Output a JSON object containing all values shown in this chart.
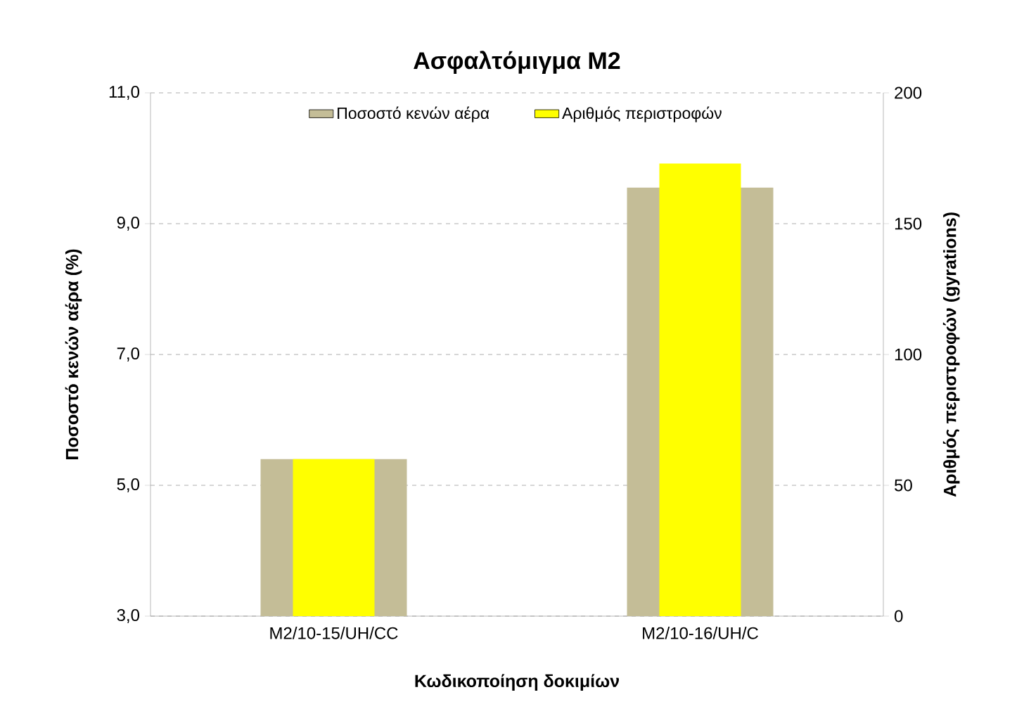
{
  "chart_data": {
    "type": "bar",
    "title": "Ασφαλτόμιγμα M2",
    "xlabel": "Κωδικοποίηση δοκιμίων",
    "ylabel": "Ποσοστό κενών αέρα (%)",
    "y2label": "Αριθμός περιστροφών (gyrations)",
    "categories": [
      "M2/10-15/UH/CC",
      "M2/10-16/UH/C"
    ],
    "series": [
      {
        "name": "Ποσοστό κενών αέρα",
        "color": "#c4bd97",
        "values": [
          5.4,
          9.55
        ]
      },
      {
        "name": "Αριθμός περιστροφών",
        "color": "#ffff00",
        "values": [
          60,
          173
        ],
        "axis": "y2"
      }
    ],
    "ylim": [
      3,
      11
    ],
    "yticks": [
      {
        "value": 3,
        "label": "3,0"
      },
      {
        "value": 5,
        "label": "5,0"
      },
      {
        "value": 7,
        "label": "7,0"
      },
      {
        "value": 9,
        "label": "9,0"
      },
      {
        "value": 11,
        "label": "11,0"
      }
    ],
    "y2lim": [
      0,
      200
    ],
    "y2ticks": [
      0,
      50,
      100,
      150,
      200
    ],
    "grid": "y",
    "legend": "top"
  }
}
